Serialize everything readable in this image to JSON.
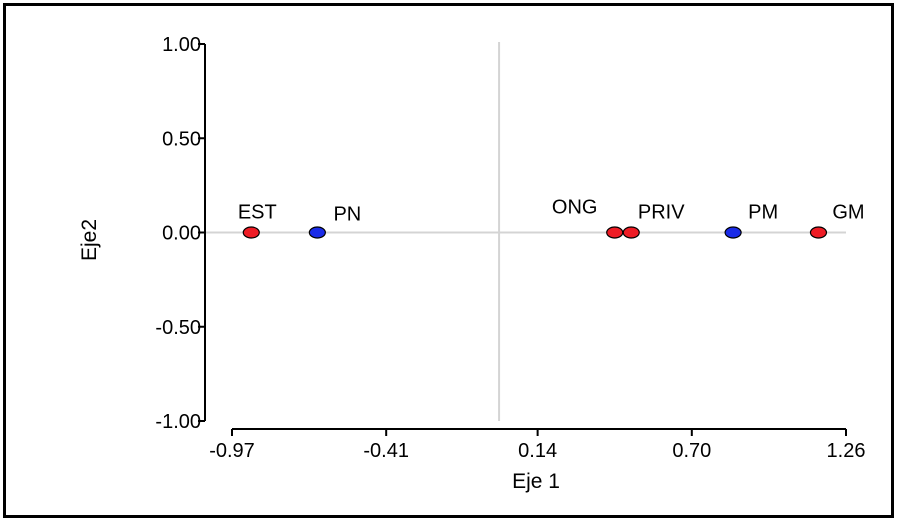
{
  "chart_data": {
    "type": "scatter",
    "xlabel": "Eje 1",
    "ylabel": "Eje2",
    "xlim": [
      -0.97,
      1.26
    ],
    "ylim": [
      -1.0,
      1.0
    ],
    "x_ticks": [
      -0.97,
      -0.41,
      0.14,
      0.7,
      1.26
    ],
    "x_tick_labels": [
      "-0.97",
      "-0.41",
      "0.14",
      "0.70",
      "1.26"
    ],
    "y_ticks": [
      1.0,
      0.5,
      0.0,
      -0.5,
      -1.0
    ],
    "y_tick_labels": [
      "1.00",
      "0.50",
      "0.00",
      "-0.50",
      "-1.00"
    ],
    "reference_lines": {
      "x": 0.0,
      "y": 0.0
    },
    "grid": false,
    "colors": {
      "red": "#ee1c25",
      "blue": "#1a2be8",
      "reference": "#d4d4d4"
    },
    "points": [
      {
        "label": "EST",
        "x": -0.9,
        "y": 0.0,
        "color": "red"
      },
      {
        "label": "PN",
        "x": -0.66,
        "y": 0.0,
        "color": "blue"
      },
      {
        "label": "ONG",
        "x": 0.42,
        "y": 0.0,
        "color": "red"
      },
      {
        "label": "PRIV",
        "x": 0.48,
        "y": 0.0,
        "color": "red"
      },
      {
        "label": "PM",
        "x": 0.85,
        "y": 0.0,
        "color": "blue"
      },
      {
        "label": "GM",
        "x": 1.16,
        "y": 0.0,
        "color": "red"
      }
    ]
  }
}
